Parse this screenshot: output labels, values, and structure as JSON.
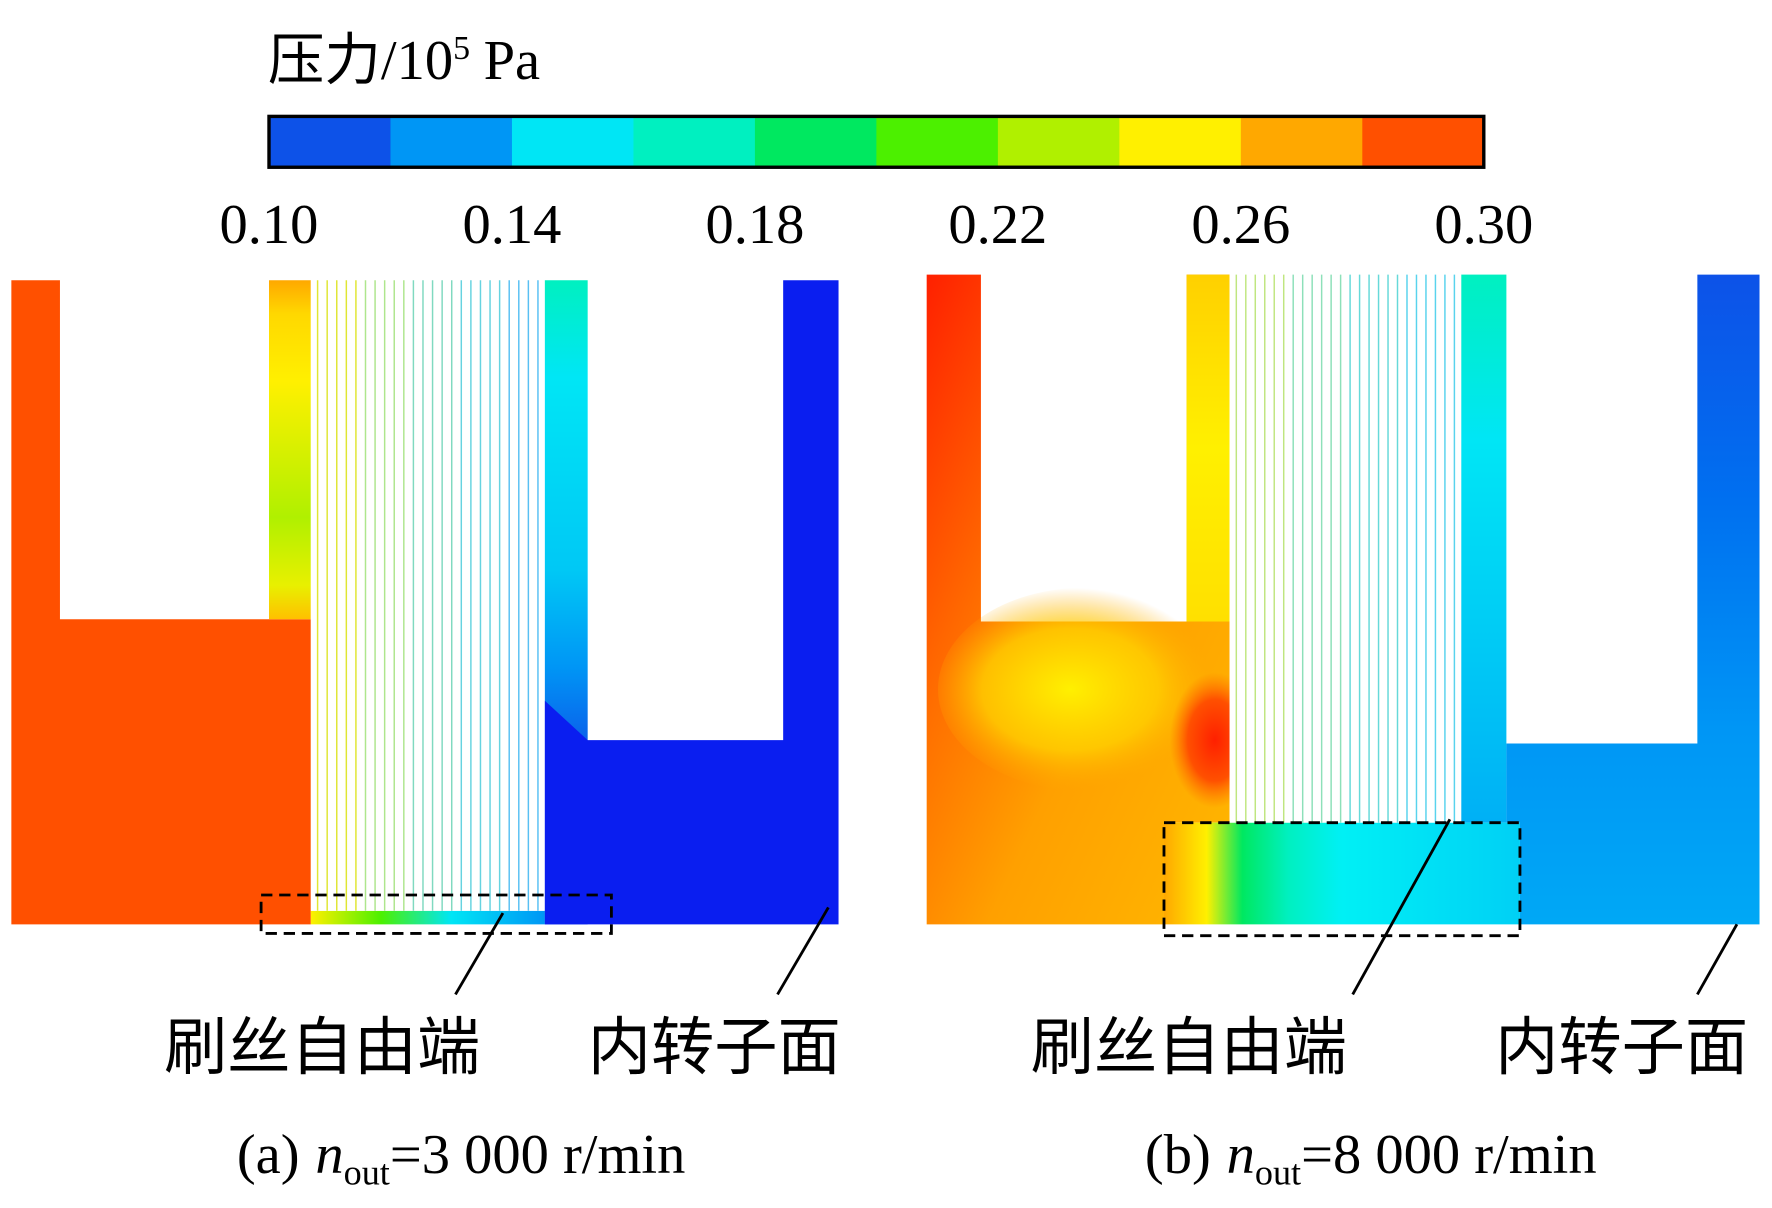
{
  "colorbar": {
    "title": {
      "main": "压力/10",
      "sup": "5",
      "unit": "Pa"
    },
    "ticks": [
      "0.10",
      "0.14",
      "0.18",
      "0.22",
      "0.26",
      "0.30"
    ],
    "colors": [
      "#0d52e8",
      "#0096f5",
      "#00e6f5",
      "#00f0c0",
      "#00e860",
      "#4cf000",
      "#b0f000",
      "#fff000",
      "#ffa800",
      "#ff5000"
    ]
  },
  "panels": [
    {
      "annotations": [
        "刷丝自由端",
        "内转子面"
      ],
      "caption": {
        "label": "(a)",
        "var": "n",
        "sub": "out",
        "rest": "=3 000 r/min"
      }
    },
    {
      "annotations": [
        "刷丝自由端",
        "内转子面"
      ],
      "caption": {
        "label": "(b)",
        "var": "n",
        "sub": "out",
        "rest": "=8 000 r/min"
      }
    }
  ]
}
